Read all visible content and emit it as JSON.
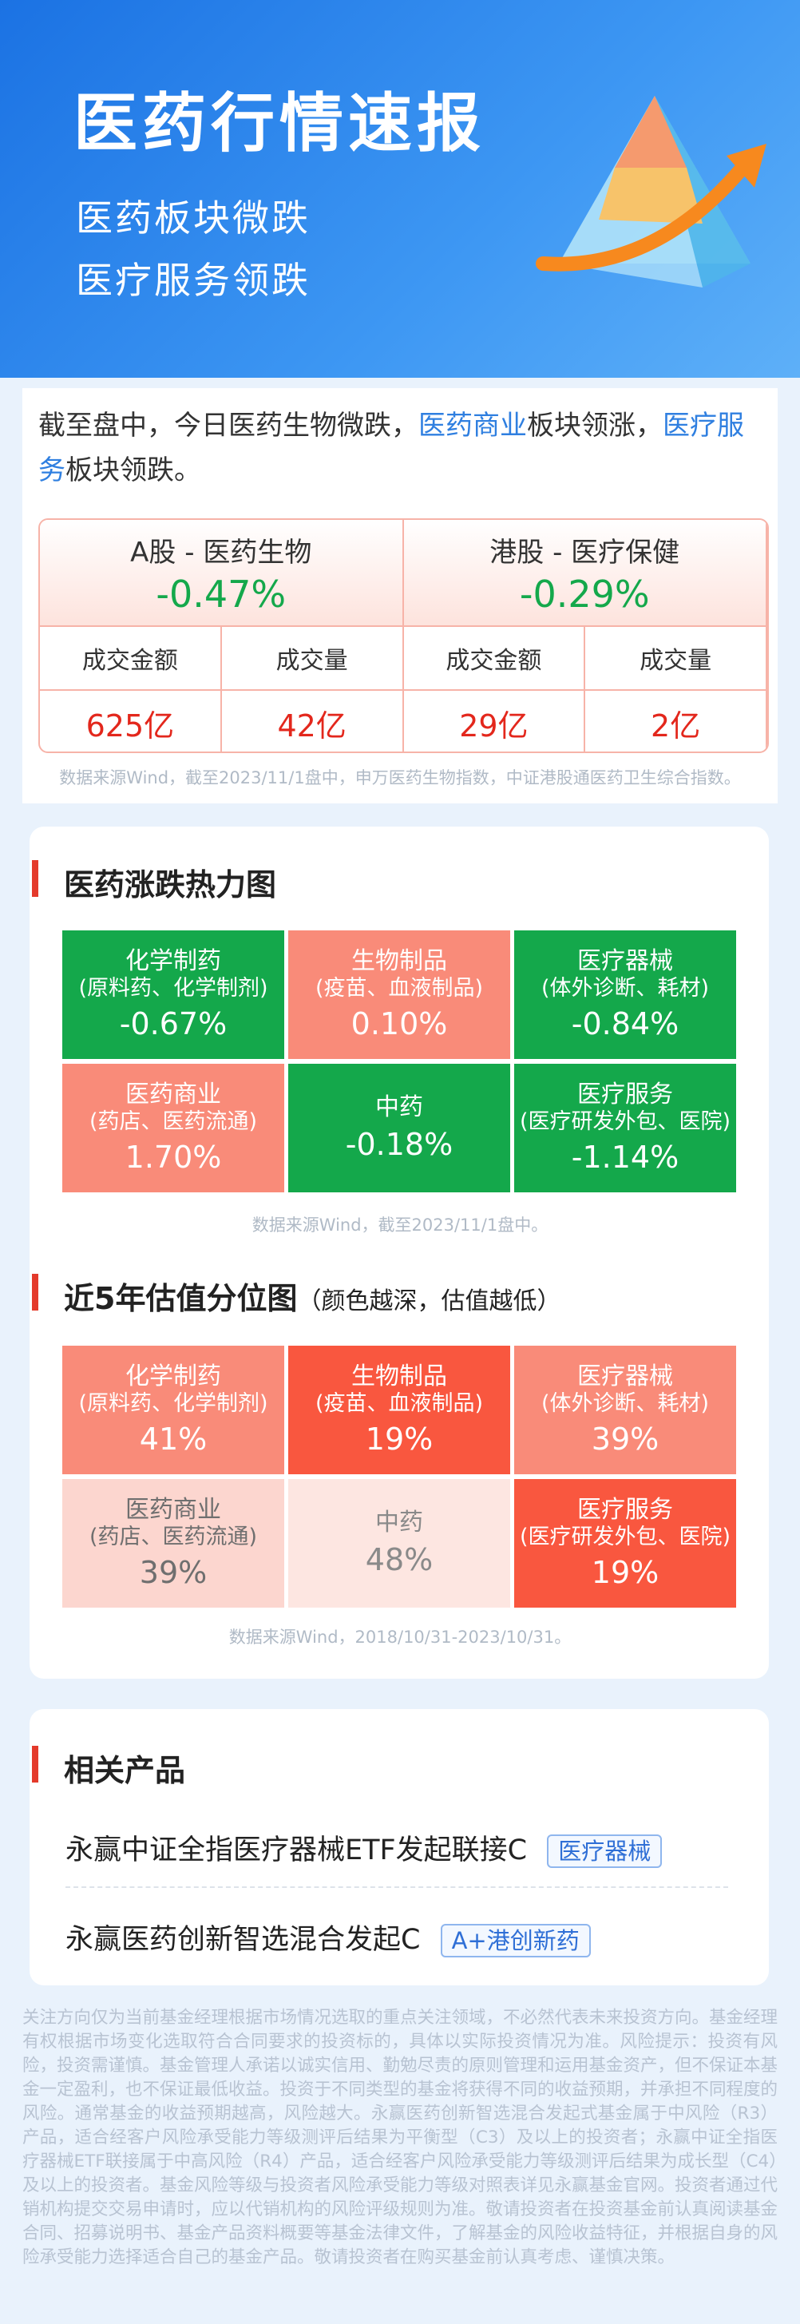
{
  "header": {
    "title": "医药行情速报",
    "subtitle_lines": [
      "医药板块微跌",
      "医疗服务领跌"
    ]
  },
  "intro": [
    "截至盘中，今日医药生物微跌，",
    "医药商业",
    "板块领涨，",
    "医疗服务",
    "板块领跌。"
  ],
  "table": {
    "markets": [
      {
        "name": "A股 - 医药生物",
        "change": "-0.47%"
      },
      {
        "name": "港股 - 医疗保健",
        "change": "-0.29%"
      }
    ],
    "headers": [
      "成交金额",
      "成交量",
      "成交金额",
      "成交量"
    ],
    "values": [
      "625亿",
      "42亿",
      "29亿",
      "2亿"
    ],
    "source": "数据来源Wind，截至2023/11/1盘中，申万医药生物指数，中证港股通医药卫生综合指数。"
  },
  "heatmap": {
    "title": "医药涨跌热力图",
    "cells": [
      {
        "name": "化学制药",
        "sub": "(原料药、化学制剂)",
        "value": "-0.67%",
        "color": "#14a84b",
        "text_color": "#ffffff"
      },
      {
        "name": "生物制品",
        "sub": "(疫苗、血液制品)",
        "value": "0.10%",
        "color": "#f98b79",
        "text_color": "#ffffff"
      },
      {
        "name": "医疗器械",
        "sub": "(体外诊断、耗材)",
        "value": "-0.84%",
        "color": "#14a84b",
        "text_color": "#ffffff"
      },
      {
        "name": "医药商业",
        "sub": "(药店、医药流通)",
        "value": "1.70%",
        "color": "#f98b79",
        "text_color": "#ffffff"
      },
      {
        "name": "中药",
        "sub": null,
        "value": "-0.18%",
        "color": "#14a84b",
        "text_color": "#ffffff"
      },
      {
        "name": "医疗服务",
        "sub": "(医疗研发外包、医院)",
        "value": "-1.14%",
        "color": "#14a84b",
        "text_color": "#ffffff"
      }
    ],
    "source": "数据来源Wind，截至2023/11/1盘中。"
  },
  "valuation": {
    "title": "近5年估值分位图",
    "note": "（颜色越深，估值越低）",
    "cells": [
      {
        "name": "化学制药",
        "sub": "(原料药、化学制剂)",
        "value": "41%",
        "color": "#f98b79",
        "text_color": "#ffffff"
      },
      {
        "name": "生物制品",
        "sub": "(疫苗、血液制品)",
        "value": "19%",
        "color": "#f9573f",
        "text_color": "#ffffff"
      },
      {
        "name": "医疗器械",
        "sub": "(体外诊断、耗材)",
        "value": "39%",
        "color": "#f98b79",
        "text_color": "#ffffff"
      },
      {
        "name": "医药商业",
        "sub": "(药店、医药流通)",
        "value": "39%",
        "color": "#fcd6cf",
        "text_color": "#6f6f6f"
      },
      {
        "name": "中药",
        "sub": null,
        "value": "48%",
        "color": "#fde6e1",
        "text_color": "#8a8a8a"
      },
      {
        "name": "医疗服务",
        "sub": "(医疗研发外包、医院)",
        "value": "19%",
        "color": "#f9573f",
        "text_color": "#ffffff"
      }
    ],
    "source": "数据来源Wind，2018/10/31-2023/10/31。"
  },
  "products": {
    "title": "相关产品",
    "items": [
      {
        "name": "永赢中证全指医疗器械ETF发起联接C",
        "tag": "医疗器械"
      },
      {
        "name": "永赢医药创新智选混合发起C",
        "tag": "A+港创新药"
      }
    ]
  },
  "disclaimer": "关注方向仅为当前基金经理根据市场情况选取的重点关注领域，不必然代表未来投资方向。基金经理有权根据市场变化选取符合合同要求的投资标的，具体以实际投资情况为准。风险提示：投资有风险，投资需谨慎。基金管理人承诺以诚实信用、勤勉尽责的原则管理和运用基金资产，但不保证本基金一定盈利，也不保证最低收益。投资于不同类型的基金将获得不同的收益预期，并承担不同程度的风险。通常基金的收益预期越高，风险越大。永赢医药创新智选混合发起式基金属于中风险（R3）产品，适合经客户风险承受能力等级测评后结果为平衡型（C3）及以上的投资者；永赢中证全指医疗器械ETF联接属于中高风险（R4）产品，适合经客户风险承受能力等级测评后结果为成长型（C4）及以上的投资者。基金风险等级与投资者风险承受能力等级对照表详见永赢基金官网。投资者通过代销机构提交交易申请时，应以代销机构的风险评级规则为准。敬请投资者在投资基金前认真阅读基金合同、招募说明书、基金产品资料概要等基金法律文件，了解基金的风险收益特征，并根据自身的风险承受能力选择适合自己的基金产品。敬请投资者在购买基金前认真考虑、谨慎决策。"
}
